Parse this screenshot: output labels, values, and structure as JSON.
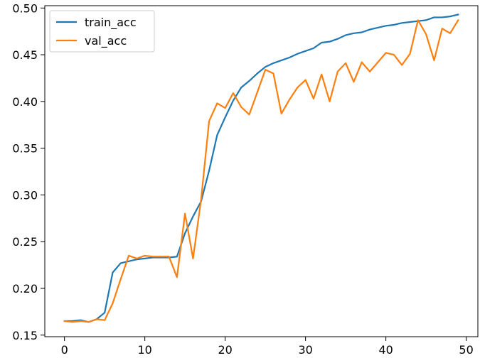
{
  "chart_data": {
    "type": "line",
    "title": "",
    "xlabel": "",
    "ylabel": "",
    "xlim": [
      -2.45,
      51.45
    ],
    "ylim": [
      0.1483,
      0.5025
    ],
    "xticks": [
      0,
      10,
      20,
      30,
      40,
      50
    ],
    "yticks": [
      0.15,
      0.2,
      0.25,
      0.3,
      0.35,
      0.4,
      0.45,
      0.5
    ],
    "xtick_labels": [
      "0",
      "10",
      "20",
      "30",
      "40",
      "50"
    ],
    "ytick_labels": [
      "0.15",
      "0.20",
      "0.25",
      "0.30",
      "0.35",
      "0.40",
      "0.45",
      "0.50"
    ],
    "grid": false,
    "legend_position": "top-left",
    "x": [
      0,
      1,
      2,
      3,
      4,
      5,
      6,
      7,
      8,
      9,
      10,
      11,
      12,
      13,
      14,
      15,
      16,
      17,
      18,
      19,
      20,
      21,
      22,
      23,
      24,
      25,
      26,
      27,
      28,
      29,
      30,
      31,
      32,
      33,
      34,
      35,
      36,
      37,
      38,
      39,
      40,
      41,
      42,
      43,
      44,
      45,
      46,
      47,
      48,
      49
    ],
    "series": [
      {
        "name": "train_acc",
        "color": "#1f77b4",
        "values": [
          0.165,
          0.165,
          0.166,
          0.164,
          0.167,
          0.174,
          0.217,
          0.227,
          0.229,
          0.231,
          0.232,
          0.233,
          0.233,
          0.233,
          0.234,
          0.259,
          0.277,
          0.293,
          0.326,
          0.364,
          0.383,
          0.401,
          0.415,
          0.422,
          0.43,
          0.437,
          0.441,
          0.444,
          0.447,
          0.451,
          0.454,
          0.457,
          0.463,
          0.464,
          0.467,
          0.471,
          0.473,
          0.474,
          0.477,
          0.479,
          0.481,
          0.482,
          0.484,
          0.485,
          0.486,
          0.487,
          0.49,
          0.49,
          0.491,
          0.493
        ]
      },
      {
        "name": "val_acc",
        "color": "#ff7f0e",
        "values": [
          0.165,
          0.164,
          0.165,
          0.164,
          0.167,
          0.166,
          0.184,
          0.21,
          0.235,
          0.232,
          0.235,
          0.234,
          0.234,
          0.234,
          0.212,
          0.28,
          0.232,
          0.295,
          0.379,
          0.398,
          0.393,
          0.409,
          0.394,
          0.386,
          0.41,
          0.434,
          0.43,
          0.387,
          0.402,
          0.415,
          0.423,
          0.403,
          0.429,
          0.4,
          0.432,
          0.441,
          0.421,
          0.442,
          0.432,
          0.442,
          0.452,
          0.45,
          0.439,
          0.451,
          0.487,
          0.472,
          0.444,
          0.478,
          0.473,
          0.487
        ]
      }
    ]
  }
}
